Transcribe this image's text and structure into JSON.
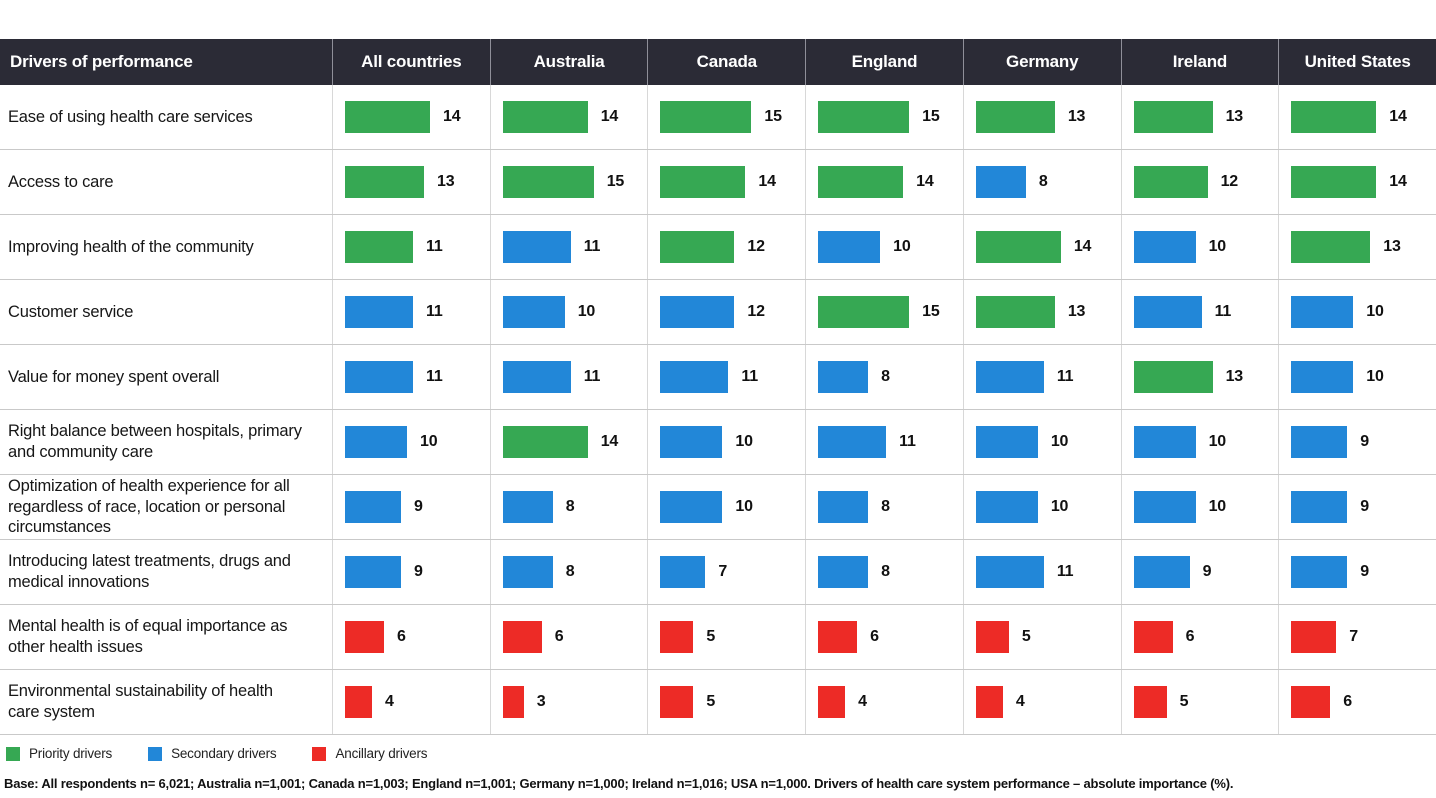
{
  "chart_data": {
    "type": "table",
    "title": "Drivers of performance",
    "columns": [
      "All countries",
      "Australia",
      "Canada",
      "England",
      "Germany",
      "Ireland",
      "United States"
    ],
    "rows": [
      {
        "label": "Ease of using health care services",
        "values": [
          14,
          14,
          15,
          15,
          13,
          13,
          14
        ],
        "tiers": [
          "priority",
          "priority",
          "priority",
          "priority",
          "priority",
          "priority",
          "priority"
        ]
      },
      {
        "label": "Access to care",
        "values": [
          13,
          15,
          14,
          14,
          8,
          12,
          14
        ],
        "tiers": [
          "priority",
          "priority",
          "priority",
          "priority",
          "secondary",
          "priority",
          "priority"
        ]
      },
      {
        "label": "Improving health of the community",
        "values": [
          11,
          11,
          12,
          10,
          14,
          10,
          13
        ],
        "tiers": [
          "priority",
          "secondary",
          "priority",
          "secondary",
          "priority",
          "secondary",
          "priority"
        ]
      },
      {
        "label": "Customer service",
        "values": [
          11,
          10,
          12,
          15,
          13,
          11,
          10
        ],
        "tiers": [
          "secondary",
          "secondary",
          "secondary",
          "priority",
          "priority",
          "secondary",
          "secondary"
        ]
      },
      {
        "label": "Value for money spent overall",
        "values": [
          11,
          11,
          11,
          8,
          11,
          13,
          10
        ],
        "tiers": [
          "secondary",
          "secondary",
          "secondary",
          "secondary",
          "secondary",
          "priority",
          "secondary"
        ]
      },
      {
        "label": "Right balance between hospitals, primary and community care",
        "values": [
          10,
          14,
          10,
          11,
          10,
          10,
          9
        ],
        "tiers": [
          "secondary",
          "priority",
          "secondary",
          "secondary",
          "secondary",
          "secondary",
          "secondary"
        ]
      },
      {
        "label": "Optimization of health experience for all regardless of race, location or personal circumstances",
        "values": [
          9,
          8,
          10,
          8,
          10,
          10,
          9
        ],
        "tiers": [
          "secondary",
          "secondary",
          "secondary",
          "secondary",
          "secondary",
          "secondary",
          "secondary"
        ]
      },
      {
        "label": "Introducing latest treatments, drugs and medical innovations",
        "values": [
          9,
          8,
          7,
          8,
          11,
          9,
          9
        ],
        "tiers": [
          "secondary",
          "secondary",
          "secondary",
          "secondary",
          "secondary",
          "secondary",
          "secondary"
        ]
      },
      {
        "label": "Mental health is of equal importance as other health issues",
        "values": [
          6,
          6,
          5,
          6,
          5,
          6,
          7
        ],
        "tiers": [
          "ancillary",
          "ancillary",
          "ancillary",
          "ancillary",
          "ancillary",
          "ancillary",
          "ancillary"
        ]
      },
      {
        "label": "Environmental sustainability of health care system",
        "values": [
          4,
          3,
          5,
          4,
          4,
          5,
          6
        ],
        "tiers": [
          "ancillary",
          "ancillary",
          "ancillary",
          "ancillary",
          "ancillary",
          "ancillary",
          "ancillary"
        ]
      }
    ],
    "legend": [
      {
        "tier": "priority",
        "label": "Priority drivers"
      },
      {
        "tier": "secondary",
        "label": "Secondary drivers"
      },
      {
        "tier": "ancillary",
        "label": "Ancillary drivers"
      }
    ],
    "note": "Base: All respondents n= 6,021; Australia n=1,001; Canada n=1,003; England n=1,001; Germany n=1,000; Ireland n=1,016; USA n=1,000. Drivers of health care system performance – absolute importance (%).",
    "colors": {
      "priority": "#36a853",
      "secondary": "#2287d8",
      "ancillary": "#ed2b26",
      "header_bg": "#2b2b36",
      "header_text": "#ffffff"
    }
  }
}
